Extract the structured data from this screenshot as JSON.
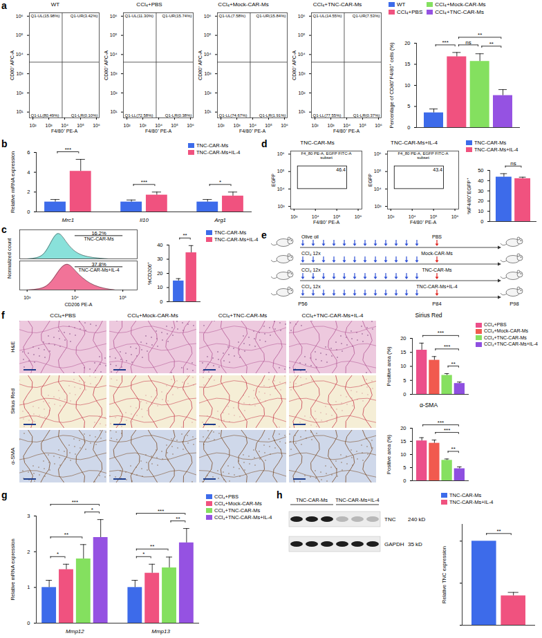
{
  "chart_data": [
    {
      "panel": "a",
      "type": "contour",
      "title": "WT",
      "xlabel": "F4/80⁺ PE-A",
      "ylabel": "CD80⁺ APC-A",
      "log": true,
      "xlim": [
        60,
        1500000
      ],
      "ylim": [
        5,
        1500000
      ],
      "xticks": [
        {
          "value": 100,
          "label": "10²"
        },
        {
          "value": 1000,
          "label": "10³"
        },
        {
          "value": 10000,
          "label": "10⁴"
        },
        {
          "value": 100000,
          "label": "10⁵"
        },
        {
          "value": 1000000,
          "label": "10⁶"
        }
      ],
      "yticks": [
        {
          "value": 10,
          "label": "10¹"
        },
        {
          "value": 100,
          "label": "10²"
        },
        {
          "value": 1000,
          "label": "10³"
        },
        {
          "value": 10000,
          "label": "10⁴"
        },
        {
          "value": 100000,
          "label": "10⁵"
        },
        {
          "value": 1000000,
          "label": "10⁶"
        }
      ],
      "gate_x": 7000,
      "gate_y": 4000,
      "quadrants": [
        "Q1-UL(15.98%)",
        "Q1-UR(3.42%)",
        "Q1-LL(80.49%)",
        "Q1-LR(0.10%)"
      ]
    },
    {
      "panel": "a",
      "type": "contour",
      "title": "CCl₄+PBS",
      "xlabel": "F4/80⁺ PE-A",
      "ylabel": "CD80⁺ APC-A",
      "log": true,
      "xlim": [
        60,
        1500000
      ],
      "ylim": [
        5,
        1500000
      ],
      "xticks": [
        {
          "value": 100,
          "label": "10²"
        },
        {
          "value": 1000,
          "label": "10³"
        },
        {
          "value": 10000,
          "label": "10⁴"
        },
        {
          "value": 100000,
          "label": "10⁵"
        },
        {
          "value": 1000000,
          "label": "10⁶"
        }
      ],
      "yticks": [
        {
          "value": 10,
          "label": "10¹"
        },
        {
          "value": 100,
          "label": "10²"
        },
        {
          "value": 1000,
          "label": "10³"
        },
        {
          "value": 10000,
          "label": "10⁴"
        },
        {
          "value": 100000,
          "label": "10⁵"
        },
        {
          "value": 1000000,
          "label": "10⁶"
        }
      ],
      "gate_x": 7000,
      "gate_y": 4000,
      "quadrants": [
        "Q1-UL(11.30%)",
        "Q1-UR(15.74%)",
        "Q1-LL(72.58%)",
        "Q1-LR(0.38%)"
      ]
    },
    {
      "panel": "a",
      "type": "contour",
      "title": "CCl₄+Mock-CAR-Ms",
      "xlabel": "F4/80⁺ PE-A",
      "ylabel": "CD80⁺ APC-A",
      "log": true,
      "xlim": [
        60,
        1500000
      ],
      "ylim": [
        5,
        1500000
      ],
      "xticks": [
        {
          "value": 100,
          "label": "10²"
        },
        {
          "value": 1000,
          "label": "10³"
        },
        {
          "value": 10000,
          "label": "10⁴"
        },
        {
          "value": 100000,
          "label": "10⁵"
        },
        {
          "value": 1000000,
          "label": "10⁶"
        }
      ],
      "yticks": [
        {
          "value": 10,
          "label": "10¹"
        },
        {
          "value": 100,
          "label": "10²"
        },
        {
          "value": 1000,
          "label": "10³"
        },
        {
          "value": 10000,
          "label": "10⁴"
        },
        {
          "value": 100000,
          "label": "10⁵"
        },
        {
          "value": 1000000,
          "label": "10⁶"
        }
      ],
      "gate_x": 7000,
      "gate_y": 4000,
      "quadrants": [
        "Q1-UL(7.58%)",
        "Q1-UR(15.84%)",
        "Q1-LL(74.67%)",
        "Q1-LR(1.91%)"
      ]
    },
    {
      "panel": "a",
      "type": "contour",
      "title": "CCl₄+TNC-CAR-Ms",
      "xlabel": "F4/80⁺ PE-A",
      "ylabel": "CD80⁺ APC-A",
      "log": true,
      "xlim": [
        60,
        1500000
      ],
      "ylim": [
        5,
        1500000
      ],
      "xticks": [
        {
          "value": 100,
          "label": "10²"
        },
        {
          "value": 1000,
          "label": "10³"
        },
        {
          "value": 10000,
          "label": "10⁴"
        },
        {
          "value": 100000,
          "label": "10⁵"
        },
        {
          "value": 1000000,
          "label": "10⁶"
        }
      ],
      "yticks": [
        {
          "value": 10,
          "label": "10¹"
        },
        {
          "value": 100,
          "label": "10²"
        },
        {
          "value": 1000,
          "label": "10³"
        },
        {
          "value": 10000,
          "label": "10⁴"
        },
        {
          "value": 100000,
          "label": "10⁵"
        },
        {
          "value": 1000000,
          "label": "10⁶"
        }
      ],
      "gate_x": 7000,
      "gate_y": 4000,
      "quadrants": [
        "Q1-UL(14.55%)",
        "Q1-UR(7.53%)",
        "Q1-LL(77.55%)",
        "Q1-LR(0.37%)"
      ]
    },
    {
      "panel": "a",
      "type": "bar",
      "ylabel": "Percentage of CD80⁺F4/80⁺ cells (%)",
      "categories": [
        "WT",
        "CCl₄+PBS",
        "CCl₄+Mock-CAR-Ms",
        "CCl₄+TNC-CAR-Ms"
      ],
      "values": [
        3.5,
        16.8,
        15.7,
        7.6
      ],
      "errors": [
        0.9,
        1.0,
        1.8,
        1.4
      ],
      "colors": [
        "#3d6bea",
        "#f0527f",
        "#84e05f",
        "#9552e2"
      ],
      "ylim": [
        0,
        20
      ],
      "yticks": [
        0,
        5,
        10,
        15,
        20
      ],
      "tick_labels": "y",
      "legend": "top",
      "comparisons": [
        {
          "pair": [
            0,
            1
          ],
          "label": "***"
        },
        {
          "pair": [
            1,
            2
          ],
          "label": "ns"
        },
        {
          "pair": [
            2,
            3
          ],
          "label": "**"
        },
        {
          "pair": [
            1,
            3
          ],
          "label": "**"
        }
      ]
    },
    {
      "panel": "b",
      "type": "bar",
      "ylabel": "Relative mRNA expression",
      "categories": [
        "Mrc1",
        "Il10",
        "Arg1"
      ],
      "series": [
        {
          "name": "TNC-CAR-Ms",
          "color": "#3d6bea",
          "values": [
            1,
            1,
            1
          ],
          "errors": [
            0.25,
            0.2,
            0.25
          ]
        },
        {
          "name": "TNC-CAR-Ms+IL-4",
          "color": "#f0527f",
          "values": [
            4.1,
            1.7,
            1.6
          ],
          "errors": [
            1.2,
            0.3,
            0.4
          ]
        }
      ],
      "ylim": [
        0,
        6
      ],
      "yticks": [
        0,
        2,
        4,
        6
      ],
      "legend": "top-right",
      "comparisons": [
        {
          "category": 0,
          "pair": [
            0,
            1
          ],
          "label": "***"
        },
        {
          "category": 1,
          "pair": [
            0,
            1
          ],
          "label": "***"
        },
        {
          "category": 2,
          "pair": [
            0,
            1
          ],
          "label": "*"
        }
      ]
    },
    {
      "panel": "c",
      "type": "area",
      "xlabel": "CD206 PE-A",
      "ylabel": "Normalized count",
      "log": "x",
      "xlim": [
        700,
        200000
      ],
      "xticks": [
        {
          "value": 1000,
          "label": "10³"
        },
        {
          "value": 10000,
          "label": "10⁴"
        },
        {
          "value": 100000,
          "label": "10⁵"
        }
      ],
      "ylim": [
        0,
        110
      ],
      "tick_labels": "x",
      "series": [
        {
          "name": "TNC-CAR-Ms",
          "color": "#74dcd4",
          "x": [
            1000,
            1600,
            2200,
            2800,
            3500,
            4300,
            5200,
            6500,
            8500,
            12000,
            18000,
            30000,
            50000
          ],
          "values": [
            0,
            3,
            15,
            45,
            80,
            100,
            92,
            65,
            38,
            18,
            8,
            3,
            0
          ],
          "gate": [
            10000,
            100000
          ],
          "gate_label": "16.2%"
        },
        {
          "name": "TNC-CAR-Ms+IL-4",
          "color": "#ee5a86",
          "x": [
            1000,
            1800,
            2600,
            3500,
            4500,
            5800,
            7200,
            9000,
            12000,
            17000,
            25000,
            40000,
            70000
          ],
          "values": [
            0,
            3,
            14,
            40,
            72,
            95,
            100,
            85,
            58,
            35,
            17,
            6,
            0
          ],
          "gate": [
            10000,
            100000
          ],
          "gate_label": "37.8%"
        }
      ]
    },
    {
      "panel": "c",
      "type": "bar",
      "ylabel": "%CD206⁺",
      "categories": [
        "TNC-CAR-Ms",
        "TNC-CAR-Ms+IL-4"
      ],
      "values": [
        14.7,
        34.6
      ],
      "errors": [
        1.6,
        5.0
      ],
      "colors": [
        "#3d6bea",
        "#f0527f"
      ],
      "ylim": [
        0,
        40
      ],
      "yticks": [
        0,
        10,
        20,
        30,
        40
      ],
      "tick_labels": "y",
      "legend": "right",
      "comparisons": [
        {
          "pair": [
            0,
            1
          ],
          "label": "**"
        }
      ]
    },
    {
      "panel": "d",
      "type": "contour",
      "title": "TNC-CAR-Ms",
      "xlabel": "F4/80⁺ PE-A",
      "ylabel": "EGFP",
      "log": true,
      "xlim": [
        700,
        1500000
      ],
      "ylim": [
        700,
        1500000
      ],
      "xticks": [
        {
          "value": 1000,
          "label": "10³"
        },
        {
          "value": 10000,
          "label": "10⁴"
        },
        {
          "value": 100000,
          "label": "10⁵"
        },
        {
          "value": 1000000,
          "label": "10⁶"
        }
      ],
      "yticks": [
        {
          "value": 1000,
          "label": "10³"
        },
        {
          "value": 10000,
          "label": "10⁴"
        },
        {
          "value": 100000,
          "label": "10⁵"
        },
        {
          "value": 1000000,
          "label": "10⁶"
        }
      ],
      "gate": {
        "x": [
          1500,
          300000
        ],
        "y": [
          10000,
          200000
        ],
        "title": "F4_80 PE-A, EGFP FITC-A subset",
        "value": 46.4
      }
    },
    {
      "panel": "d",
      "type": "contour",
      "title": "TNC-CAR-Ms+IL-4",
      "xlabel": "F4/80⁺ PE-A",
      "ylabel": "EGFP",
      "log": true,
      "xlim": [
        700,
        1500000
      ],
      "ylim": [
        700,
        1500000
      ],
      "xticks": [
        {
          "value": 1000,
          "label": "10³"
        },
        {
          "value": 10000,
          "label": "10⁴"
        },
        {
          "value": 100000,
          "label": "10⁵"
        },
        {
          "value": 1000000,
          "label": "10⁶"
        }
      ],
      "yticks": [
        {
          "value": 1000,
          "label": "10³"
        },
        {
          "value": 10000,
          "label": "10⁴"
        },
        {
          "value": 100000,
          "label": "10⁵"
        },
        {
          "value": 1000000,
          "label": "10⁶"
        }
      ],
      "gate": {
        "x": [
          1500,
          300000
        ],
        "y": [
          10000,
          200000
        ],
        "title": "F4_80 PE-A, EGFP FITC-A subset",
        "value": 43.4
      }
    },
    {
      "panel": "d",
      "type": "bar",
      "ylabel": "%F4/80⁺EGFP⁺",
      "categories": [
        "TNC-CAR-Ms",
        "TNC-CAR-Ms+IL-4"
      ],
      "values": [
        43.5,
        42.0
      ],
      "errors": [
        3.3,
        1.4
      ],
      "colors": [
        "#3d6bea",
        "#f0527f"
      ],
      "ylim": [
        0,
        50
      ],
      "yticks": [
        0,
        10,
        20,
        30,
        40,
        50
      ],
      "tick_labels": "y",
      "legend": "top",
      "comparisons": [
        {
          "pair": [
            0,
            1
          ],
          "label": "ns"
        }
      ]
    },
    {
      "panel": "f",
      "type": "bar",
      "title": "Sirius Red",
      "ylabel": "Positive area (%)",
      "categories": [
        "CCl₄+PBS",
        "CCl₄+Mock-CAR-Ms",
        "CCl₄+TNC-CAR-Ms",
        "CCl₄+TNC-CAR-Ms+IL-4"
      ],
      "values": [
        15.8,
        12.2,
        6.8,
        3.9
      ],
      "errors": [
        2.5,
        1.3,
        0.6,
        0.5
      ],
      "colors": [
        "#ec4f8a",
        "#f15a4f",
        "#86e060",
        "#8e4fe0"
      ],
      "ylim": [
        0,
        20
      ],
      "yticks": [
        0,
        5,
        10,
        15,
        20
      ],
      "tick_labels": "y",
      "legend": "right",
      "comparisons": [
        {
          "pair": [
            0,
            3
          ],
          "label": "***"
        },
        {
          "pair": [
            1,
            3
          ],
          "label": "***"
        },
        {
          "pair": [
            2,
            3
          ],
          "label": "**"
        }
      ]
    },
    {
      "panel": "f",
      "type": "bar",
      "title": "α-SMA",
      "ylabel": "Positive area (%)",
      "categories": [
        "CCl₄+PBS",
        "CCl₄+Mock-CAR-Ms",
        "CCl₄+TNC-CAR-Ms",
        "CCl₄+TNC-CAR-Ms+IL-4"
      ],
      "values": [
        15.2,
        14.3,
        7.8,
        4.6
      ],
      "errors": [
        1.2,
        1.2,
        0.5,
        0.7
      ],
      "colors": [
        "#ec4f8a",
        "#f15a4f",
        "#86e060",
        "#8e4fe0"
      ],
      "ylim": [
        0,
        20
      ],
      "yticks": [
        0,
        5,
        10,
        15,
        20
      ],
      "tick_labels": "y",
      "comparisons": [
        {
          "pair": [
            0,
            3
          ],
          "label": "***"
        },
        {
          "pair": [
            1,
            3
          ],
          "label": "***"
        },
        {
          "pair": [
            2,
            3
          ],
          "label": "**"
        }
      ]
    },
    {
      "panel": "g",
      "type": "bar",
      "ylabel": "Relative mRNA expression",
      "categories": [
        "Mmp12",
        "Mmp13"
      ],
      "series": [
        {
          "name": "CCl₄+PBS",
          "color": "#3d6bea",
          "values": [
            1.0,
            1.0
          ],
          "errors": [
            0.2,
            0.2
          ]
        },
        {
          "name": "CCl₄+Mock-CAR-Ms",
          "color": "#f0527f",
          "values": [
            1.5,
            1.4
          ],
          "errors": [
            0.15,
            0.25
          ]
        },
        {
          "name": "CCl₄+TNC-CAR-Ms",
          "color": "#84e05f",
          "values": [
            1.8,
            1.55
          ],
          "errors": [
            0.4,
            0.3
          ]
        },
        {
          "name": "CCl₄+TNC-CAR-Ms+IL-4",
          "color": "#9552e2",
          "values": [
            2.4,
            2.25
          ],
          "errors": [
            0.5,
            0.4
          ]
        }
      ],
      "ylim": [
        0,
        3
      ],
      "yticks": [
        0,
        1,
        2,
        3
      ],
      "legend": "right",
      "comparisons": [
        {
          "category": 0,
          "pair": [
            0,
            1
          ],
          "label": "*"
        },
        {
          "category": 0,
          "pair": [
            0,
            2
          ],
          "label": "**"
        },
        {
          "category": 0,
          "pair": [
            0,
            3
          ],
          "label": "***"
        },
        {
          "category": 0,
          "pair": [
            2,
            3
          ],
          "label": "*"
        },
        {
          "category": 1,
          "pair": [
            0,
            1
          ],
          "label": "*"
        },
        {
          "category": 1,
          "pair": [
            0,
            2
          ],
          "label": "**"
        },
        {
          "category": 1,
          "pair": [
            0,
            3
          ],
          "label": "***"
        },
        {
          "category": 1,
          "pair": [
            2,
            3
          ],
          "label": "**"
        }
      ]
    },
    {
      "panel": "h",
      "type": "bar",
      "ylabel": "Relative TNC expression",
      "categories": [
        "TNC-CAR-Ms",
        "TNC-CAR-Ms+IL-4"
      ],
      "values": [
        1.0,
        0.35
      ],
      "errors": [
        0,
        0.04
      ],
      "colors": [
        "#3d6bea",
        "#f0527f"
      ],
      "ylim": [
        0,
        1.2
      ],
      "yticks": [
        0,
        0.5,
        1
      ],
      "tick_labels": false,
      "legend": "top",
      "comparisons": [
        {
          "pair": [
            0,
            1
          ],
          "label": "**"
        }
      ]
    }
  ],
  "diagram": {
    "panel": "e",
    "rows": [
      {
        "left": "Olive oil",
        "right": "PBS"
      },
      {
        "left": "CCl₄ 12x",
        "right": "Mock-CAR-Ms"
      },
      {
        "left": "CCl₄ 12x",
        "right": "TNC-CAR-Ms"
      },
      {
        "left": "CCl₄ 12x",
        "right": "TNC-CAR-Ms+IL-4"
      }
    ],
    "timepoints": [
      "P56",
      "P84",
      "P98"
    ]
  },
  "histology": {
    "panel": "f",
    "columns": [
      "CCl₄+PBS",
      "CCl₄+Mock-CAR-Ms",
      "CCl₄+TNC-CAR-Ms",
      "CCl₄+TNC-CAR-Ms+IL-4"
    ],
    "rows": [
      "H&E",
      "Sirius Red",
      "α-SMA"
    ]
  },
  "blot": {
    "panel": "h",
    "groups": [
      {
        "label": "TNC-CAR-Ms",
        "lanes": 3
      },
      {
        "label": "TNC-CAR-Ms+IL-4",
        "lanes": 3
      }
    ],
    "bands": [
      {
        "name": "TNC",
        "size": "240 kD"
      },
      {
        "name": "GAPDH",
        "size": "35 kD"
      }
    ]
  }
}
